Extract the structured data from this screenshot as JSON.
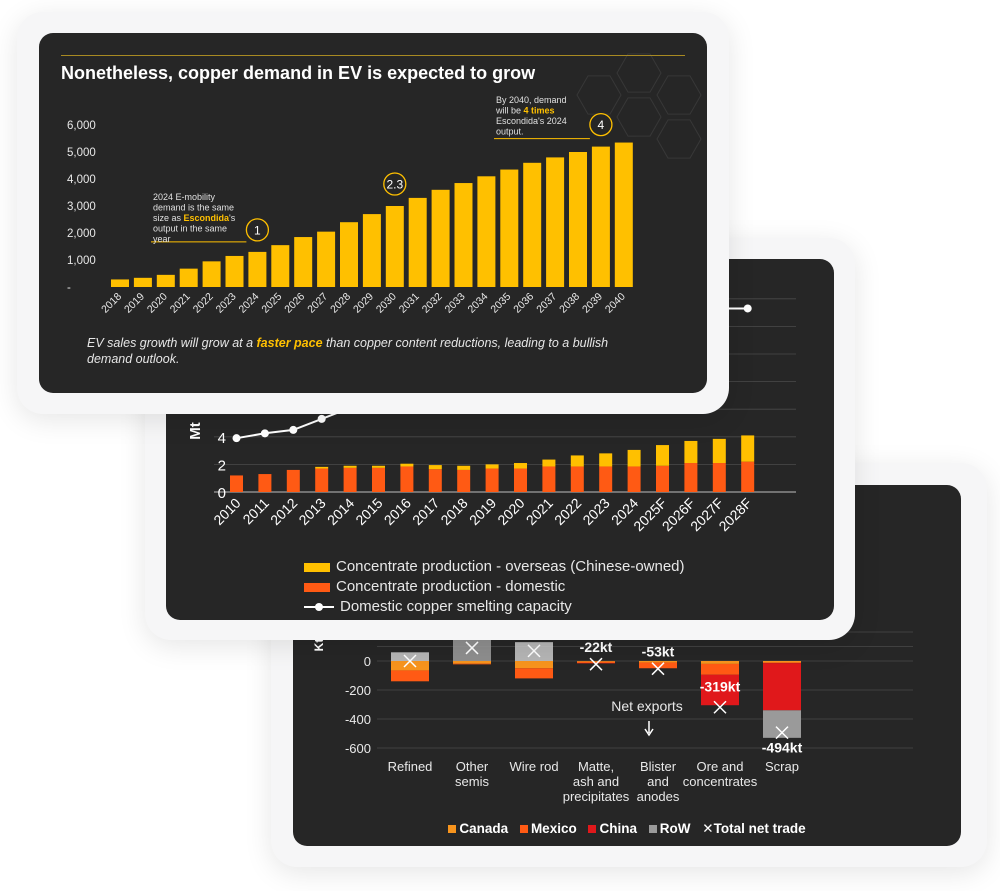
{
  "card1": {
    "title": "Nonetheless, copper demand in EV is expected to grow",
    "note_pre": "EV sales growth will grow at a ",
    "note_hl": "faster pace",
    "note_post": " than copper content reductions, leading to a bullish demand outlook.",
    "callouts": [
      {
        "label": "1",
        "text": [
          "2024 E-mobility",
          "demand is the same",
          "size as Escondida's",
          "output in the same",
          "year"
        ]
      },
      {
        "label": "2.3"
      },
      {
        "label": "4",
        "text": [
          "By 2040, demand",
          "will be 4 times",
          "Escondida's 2024",
          "output."
        ]
      }
    ]
  },
  "card2": {
    "ylabel": "Mt",
    "legend": {
      "overseas": "Concentrate production - overseas (Chinese-owned)",
      "domestic": "Concentrate production - domestic",
      "smelting": "Domestic copper smelting capacity"
    }
  },
  "card3": {
    "ylabel": "Kt",
    "net_exports": "Net exports",
    "legend": {
      "canada": "Canada",
      "mexico": "Mexico",
      "china": "China",
      "row": "RoW",
      "total": "Total net trade"
    }
  },
  "colors": {
    "yellow": "#ffc000",
    "orange": "#ff5a14",
    "canada": "#f7941d",
    "mexico": "#ff5a14",
    "china": "#e0181b",
    "row": "#9a9a9a",
    "card": "#262626"
  },
  "chart_data": [
    {
      "type": "bar",
      "title": "Nonetheless, copper demand in EV is expected to grow",
      "categories": [
        "2018",
        "2019",
        "2020",
        "2021",
        "2022",
        "2023",
        "2024",
        "2025",
        "2026",
        "2027",
        "2028",
        "2029",
        "2030",
        "2031",
        "2032",
        "2033",
        "2034",
        "2035",
        "2036",
        "2037",
        "2038",
        "2039",
        "2040"
      ],
      "values": [
        280,
        340,
        450,
        680,
        950,
        1150,
        1300,
        1550,
        1850,
        2050,
        2400,
        2700,
        3000,
        3300,
        3600,
        3850,
        4100,
        4350,
        4600,
        4800,
        5000,
        5200,
        5350
      ],
      "yticks": [
        "-",
        "1,000",
        "2,000",
        "3,000",
        "4,000",
        "5,000",
        "6,000"
      ],
      "ylim": [
        0,
        6000
      ],
      "grid": false
    },
    {
      "type": "bar",
      "stacked": true,
      "categories": [
        "2010",
        "2011",
        "2012",
        "2013",
        "2014",
        "2015",
        "2016",
        "2017",
        "2018",
        "2019",
        "2020",
        "2021",
        "2022",
        "2023",
        "2024",
        "2025F",
        "2026F",
        "2027F",
        "2028F"
      ],
      "series": [
        {
          "name": "Concentrate production - domestic",
          "values": [
            1.2,
            1.3,
            1.6,
            1.7,
            1.75,
            1.75,
            1.85,
            1.65,
            1.6,
            1.7,
            1.7,
            1.85,
            1.85,
            1.85,
            1.85,
            1.9,
            2.1,
            2.1,
            2.2
          ]
        },
        {
          "name": "Concentrate production - overseas (Chinese-owned)",
          "values": [
            0,
            0,
            0,
            0.12,
            0.15,
            0.15,
            0.2,
            0.3,
            0.3,
            0.3,
            0.4,
            0.5,
            0.8,
            0.95,
            1.2,
            1.5,
            1.6,
            1.75,
            1.9
          ]
        },
        {
          "name": "Domestic copper smelting capacity",
          "type": "line",
          "x": [
            "2010",
            "2011",
            "2012",
            "2013",
            "2014",
            "2015",
            "2016",
            "2017",
            "2018",
            "2019",
            "2020",
            "2021",
            "2022",
            "2023",
            "2024",
            "2025F",
            "2026F",
            "2027F",
            "2028F"
          ],
          "values": [
            3.9,
            4.25,
            4.5,
            5.3,
            6.1,
            6.5,
            6.8,
            7.1,
            7.5,
            7.8,
            8.1,
            8.5,
            9.0,
            9.6,
            10.5,
            11.3,
            12.2,
            13.3,
            13.3
          ]
        }
      ],
      "ylabel": "Mt",
      "yticks": [
        0,
        2,
        4
      ],
      "ylim": [
        0,
        14
      ]
    },
    {
      "type": "bar",
      "stacked": true,
      "categories": [
        "Refined",
        "Other semis",
        "Wire rod",
        "Matte, ash and precipitates",
        "Blister and anodes",
        "Ore and concentrates",
        "Scrap"
      ],
      "series": [
        {
          "name": "Canada",
          "values": [
            -65,
            -18,
            -50,
            -5,
            -10,
            -20,
            -10
          ]
        },
        {
          "name": "Mexico",
          "values": [
            -75,
            -5,
            -70,
            -10,
            -40,
            -75,
            -5
          ]
        },
        {
          "name": "China",
          "values": [
            0,
            0,
            0,
            -2,
            0,
            -210,
            -325
          ]
        },
        {
          "name": "RoW",
          "values": [
            0,
            0,
            0,
            0,
            0,
            0,
            -190
          ]
        },
        {
          "name": "Total net trade",
          "type": "scatter",
          "values": [
            0,
            90,
            70,
            -22,
            -53,
            -319,
            -494
          ]
        }
      ],
      "data_labels": [
        "",
        "",
        "",
        "-22kt",
        "-53kt",
        "-319kt",
        "-494kt"
      ],
      "ylabel": "Kt",
      "yticks": [
        0,
        -200,
        -400,
        -600
      ],
      "ylim": [
        -600,
        0
      ],
      "annotations": [
        "Net exports"
      ]
    }
  ]
}
